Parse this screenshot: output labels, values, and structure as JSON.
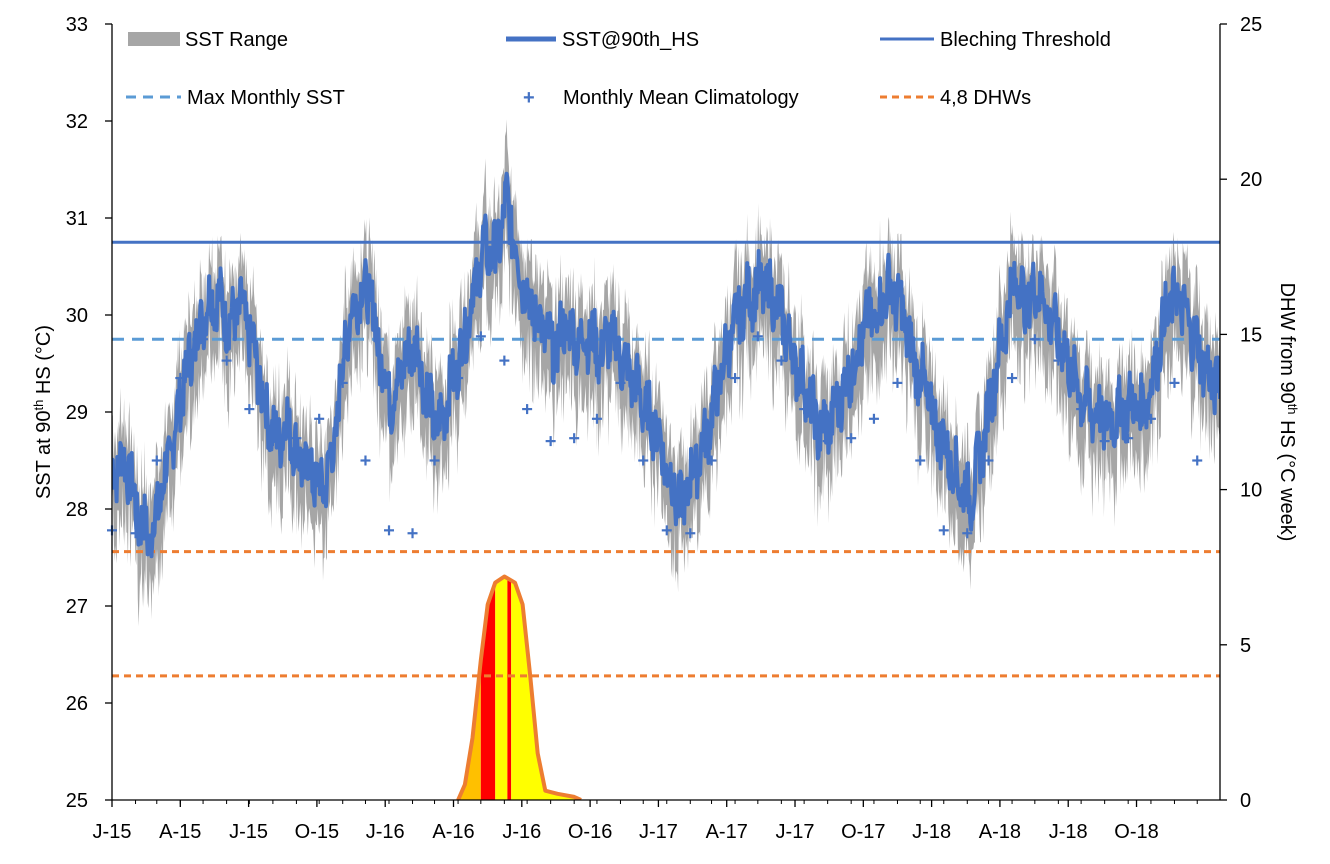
{
  "chart_data": {
    "type": "line",
    "left_axis": {
      "label": "SST at 90th HS (°C)",
      "label_main": "SST at 90",
      "label_sup": "th",
      "label_rest": " HS (°C)",
      "ylim": [
        25,
        33
      ],
      "ticks": [
        "25",
        "26",
        "27",
        "28",
        "29",
        "30",
        "31",
        "32",
        "33"
      ]
    },
    "right_axis": {
      "label": "DHW from 90th HS (°C week)",
      "label_main": "DHW from 90",
      "label_sup": "th",
      "label_rest": " HS (°C week)",
      "ylim": [
        0,
        25
      ],
      "ticks": [
        "0",
        "5",
        "10",
        "15",
        "20",
        "25"
      ]
    },
    "x_axis": {
      "ticks": [
        "J-15",
        "A-15",
        "J-15",
        "O-15",
        "J-16",
        "A-16",
        "J-16",
        "O-16",
        "J-17",
        "A-17",
        "J-17",
        "O-17",
        "J-18",
        "A-18",
        "J-18",
        "O-18"
      ],
      "start": "2015-01",
      "end": "2018-12"
    },
    "legend_position": "top",
    "legend": {
      "sst_range": "SST Range",
      "sst_90th": "SST@90th_HS",
      "bleaching_threshold": "Bleching Threshold",
      "max_monthly_sst": "Max Monthly SST",
      "mmm_climatology": "Monthly Mean Climatology",
      "dhw_levels": "4,8 DHWs"
    },
    "bleaching_threshold": 30.75,
    "max_monthly_sst": 29.75,
    "dhw_thresholds": [
      4,
      8
    ],
    "monthly_mean_climatology": [
      {
        "x": "2015-01-01",
        "y": 27.78
      },
      {
        "x": "2015-02-01",
        "y": 27.75
      },
      {
        "x": "2015-03-01",
        "y": 28.5
      },
      {
        "x": "2015-04-01",
        "y": 29.35
      },
      {
        "x": "2015-05-01",
        "y": 29.75
      },
      {
        "x": "2015-06-01",
        "y": 29.53
      },
      {
        "x": "2015-07-01",
        "y": 29.03
      },
      {
        "x": "2015-08-01",
        "y": 28.7
      },
      {
        "x": "2015-09-01",
        "y": 28.73
      },
      {
        "x": "2015-10-01",
        "y": 28.93
      },
      {
        "x": "2015-11-01",
        "y": 29.3
      },
      {
        "x": "2015-12-01",
        "y": 28.5
      },
      {
        "x": "2016-01-01",
        "y": 27.78
      },
      {
        "x": "2016-02-01",
        "y": 27.75
      },
      {
        "x": "2016-03-01",
        "y": 28.5
      },
      {
        "x": "2016-04-01",
        "y": 29.35
      },
      {
        "x": "2016-05-01",
        "y": 29.78
      },
      {
        "x": "2016-06-01",
        "y": 29.53
      },
      {
        "x": "2016-07-01",
        "y": 29.03
      },
      {
        "x": "2016-08-01",
        "y": 28.7
      },
      {
        "x": "2016-09-01",
        "y": 28.73
      },
      {
        "x": "2016-10-01",
        "y": 28.93
      },
      {
        "x": "2016-11-01",
        "y": 29.3
      },
      {
        "x": "2016-12-01",
        "y": 28.5
      },
      {
        "x": "2017-01-01",
        "y": 27.78
      },
      {
        "x": "2017-02-01",
        "y": 27.75
      },
      {
        "x": "2017-03-01",
        "y": 28.5
      },
      {
        "x": "2017-04-01",
        "y": 29.35
      },
      {
        "x": "2017-05-01",
        "y": 29.78
      },
      {
        "x": "2017-06-01",
        "y": 29.53
      },
      {
        "x": "2017-07-01",
        "y": 29.03
      },
      {
        "x": "2017-08-01",
        "y": 28.7
      },
      {
        "x": "2017-09-01",
        "y": 28.73
      },
      {
        "x": "2017-10-01",
        "y": 28.93
      },
      {
        "x": "2017-11-01",
        "y": 29.3
      },
      {
        "x": "2017-12-01",
        "y": 28.5
      },
      {
        "x": "2018-01-01",
        "y": 27.78
      },
      {
        "x": "2018-02-01",
        "y": 27.75
      },
      {
        "x": "2018-03-01",
        "y": 28.5
      },
      {
        "x": "2018-04-01",
        "y": 29.35
      },
      {
        "x": "2018-05-01",
        "y": 29.75
      },
      {
        "x": "2018-06-01",
        "y": 29.53
      },
      {
        "x": "2018-07-01",
        "y": 29.03
      },
      {
        "x": "2018-08-01",
        "y": 28.7
      },
      {
        "x": "2018-09-01",
        "y": 28.73
      },
      {
        "x": "2018-10-01",
        "y": 28.93
      },
      {
        "x": "2018-11-01",
        "y": 29.3
      },
      {
        "x": "2018-12-01",
        "y": 28.5
      }
    ],
    "sst_90th_hs": [
      {
        "x": "2015-01-01",
        "y": 28.4
      },
      {
        "x": "2015-01-20",
        "y": 28.5
      },
      {
        "x": "2015-02-05",
        "y": 27.9
      },
      {
        "x": "2015-02-20",
        "y": 27.7
      },
      {
        "x": "2015-03-05",
        "y": 28.1
      },
      {
        "x": "2015-03-20",
        "y": 28.6
      },
      {
        "x": "2015-04-05",
        "y": 29.3
      },
      {
        "x": "2015-04-20",
        "y": 29.7
      },
      {
        "x": "2015-05-05",
        "y": 30.1
      },
      {
        "x": "2015-05-20",
        "y": 30.2
      },
      {
        "x": "2015-06-05",
        "y": 29.9
      },
      {
        "x": "2015-06-20",
        "y": 30.1
      },
      {
        "x": "2015-07-05",
        "y": 29.7
      },
      {
        "x": "2015-07-20",
        "y": 29.1
      },
      {
        "x": "2015-08-05",
        "y": 28.7
      },
      {
        "x": "2015-08-20",
        "y": 28.9
      },
      {
        "x": "2015-09-05",
        "y": 28.5
      },
      {
        "x": "2015-09-20",
        "y": 28.4
      },
      {
        "x": "2015-10-05",
        "y": 28.2
      },
      {
        "x": "2015-10-20",
        "y": 28.6
      },
      {
        "x": "2015-11-05",
        "y": 29.8
      },
      {
        "x": "2015-11-20",
        "y": 30.2
      },
      {
        "x": "2015-12-05",
        "y": 30.3
      },
      {
        "x": "2015-12-20",
        "y": 29.6
      },
      {
        "x": "2016-01-05",
        "y": 29.1
      },
      {
        "x": "2016-01-20",
        "y": 29.5
      },
      {
        "x": "2016-02-05",
        "y": 29.7
      },
      {
        "x": "2016-02-20",
        "y": 29.2
      },
      {
        "x": "2016-03-05",
        "y": 28.8
      },
      {
        "x": "2016-03-20",
        "y": 29.2
      },
      {
        "x": "2016-04-05",
        "y": 29.6
      },
      {
        "x": "2016-04-20",
        "y": 30.2
      },
      {
        "x": "2016-05-05",
        "y": 30.7
      },
      {
        "x": "2016-05-20",
        "y": 30.6
      },
      {
        "x": "2016-06-05",
        "y": 31.2
      },
      {
        "x": "2016-06-20",
        "y": 30.5
      },
      {
        "x": "2016-07-05",
        "y": 30.1
      },
      {
        "x": "2016-07-20",
        "y": 29.9
      },
      {
        "x": "2016-08-05",
        "y": 29.6
      },
      {
        "x": "2016-08-20",
        "y": 29.9
      },
      {
        "x": "2016-09-05",
        "y": 29.7
      },
      {
        "x": "2016-09-20",
        "y": 29.8
      },
      {
        "x": "2016-10-05",
        "y": 29.6
      },
      {
        "x": "2016-10-20",
        "y": 29.8
      },
      {
        "x": "2016-11-05",
        "y": 29.5
      },
      {
        "x": "2016-11-20",
        "y": 29.3
      },
      {
        "x": "2016-12-05",
        "y": 29.0
      },
      {
        "x": "2016-12-20",
        "y": 28.8
      },
      {
        "x": "2017-01-05",
        "y": 28.3
      },
      {
        "x": "2017-01-20",
        "y": 28.0
      },
      {
        "x": "2017-02-05",
        "y": 28.4
      },
      {
        "x": "2017-02-20",
        "y": 28.7
      },
      {
        "x": "2017-03-05",
        "y": 29.1
      },
      {
        "x": "2017-03-20",
        "y": 29.6
      },
      {
        "x": "2017-04-05",
        "y": 30.0
      },
      {
        "x": "2017-04-20",
        "y": 30.2
      },
      {
        "x": "2017-05-05",
        "y": 30.3
      },
      {
        "x": "2017-05-20",
        "y": 30.2
      },
      {
        "x": "2017-06-05",
        "y": 29.9
      },
      {
        "x": "2017-06-20",
        "y": 29.5
      },
      {
        "x": "2017-07-05",
        "y": 29.2
      },
      {
        "x": "2017-07-20",
        "y": 28.8
      },
      {
        "x": "2017-08-05",
        "y": 28.9
      },
      {
        "x": "2017-08-20",
        "y": 29.2
      },
      {
        "x": "2017-09-05",
        "y": 29.5
      },
      {
        "x": "2017-09-20",
        "y": 29.9
      },
      {
        "x": "2017-10-05",
        "y": 30.0
      },
      {
        "x": "2017-10-20",
        "y": 30.3
      },
      {
        "x": "2017-11-05",
        "y": 30.1
      },
      {
        "x": "2017-11-20",
        "y": 29.6
      },
      {
        "x": "2017-12-05",
        "y": 29.3
      },
      {
        "x": "2017-12-20",
        "y": 28.9
      },
      {
        "x": "2018-01-05",
        "y": 28.6
      },
      {
        "x": "2018-01-20",
        "y": 28.3
      },
      {
        "x": "2018-02-05",
        "y": 28.1
      },
      {
        "x": "2018-02-20",
        "y": 28.6
      },
      {
        "x": "2018-03-05",
        "y": 29.2
      },
      {
        "x": "2018-03-20",
        "y": 29.8
      },
      {
        "x": "2018-04-05",
        "y": 30.4
      },
      {
        "x": "2018-04-20",
        "y": 30.1
      },
      {
        "x": "2018-05-05",
        "y": 30.3
      },
      {
        "x": "2018-05-20",
        "y": 30.0
      },
      {
        "x": "2018-06-05",
        "y": 29.7
      },
      {
        "x": "2018-06-20",
        "y": 29.4
      },
      {
        "x": "2018-07-05",
        "y": 29.1
      },
      {
        "x": "2018-07-20",
        "y": 29.0
      },
      {
        "x": "2018-08-05",
        "y": 28.9
      },
      {
        "x": "2018-08-20",
        "y": 29.0
      },
      {
        "x": "2018-09-05",
        "y": 29.1
      },
      {
        "x": "2018-09-20",
        "y": 29.0
      },
      {
        "x": "2018-10-05",
        "y": 29.4
      },
      {
        "x": "2018-10-20",
        "y": 30.0
      },
      {
        "x": "2018-11-05",
        "y": 30.2
      },
      {
        "x": "2018-11-20",
        "y": 29.9
      },
      {
        "x": "2018-12-05",
        "y": 29.6
      },
      {
        "x": "2018-12-20",
        "y": 29.3
      }
    ],
    "dhw_from_90th_hs": [
      {
        "x": "2016-04-01",
        "y": 0
      },
      {
        "x": "2016-04-10",
        "y": 0.5
      },
      {
        "x": "2016-04-20",
        "y": 2.0
      },
      {
        "x": "2016-05-01",
        "y": 4.5
      },
      {
        "x": "2016-05-10",
        "y": 6.3
      },
      {
        "x": "2016-05-20",
        "y": 7.0
      },
      {
        "x": "2016-06-01",
        "y": 7.2
      },
      {
        "x": "2016-06-15",
        "y": 7.0
      },
      {
        "x": "2016-06-25",
        "y": 6.3
      },
      {
        "x": "2016-07-05",
        "y": 4.0
      },
      {
        "x": "2016-07-15",
        "y": 1.5
      },
      {
        "x": "2016-07-25",
        "y": 0.3
      },
      {
        "x": "2016-08-10",
        "y": 0.2
      },
      {
        "x": "2016-09-01",
        "y": 0.1
      },
      {
        "x": "2016-09-10",
        "y": 0
      }
    ],
    "colors": {
      "sst_range": "#a6a6a6",
      "sst_90th": "#4472c4",
      "threshold": "#4472c4",
      "max_monthly": "#5b9bd5",
      "climatology": "#4472c4",
      "dhw_lines": "#ed7d31",
      "dhw_outline": "#ed7d31",
      "dhw_level1": "#ffff00",
      "dhw_level2": "#ffc000",
      "dhw_level3": "#ff0000"
    }
  }
}
